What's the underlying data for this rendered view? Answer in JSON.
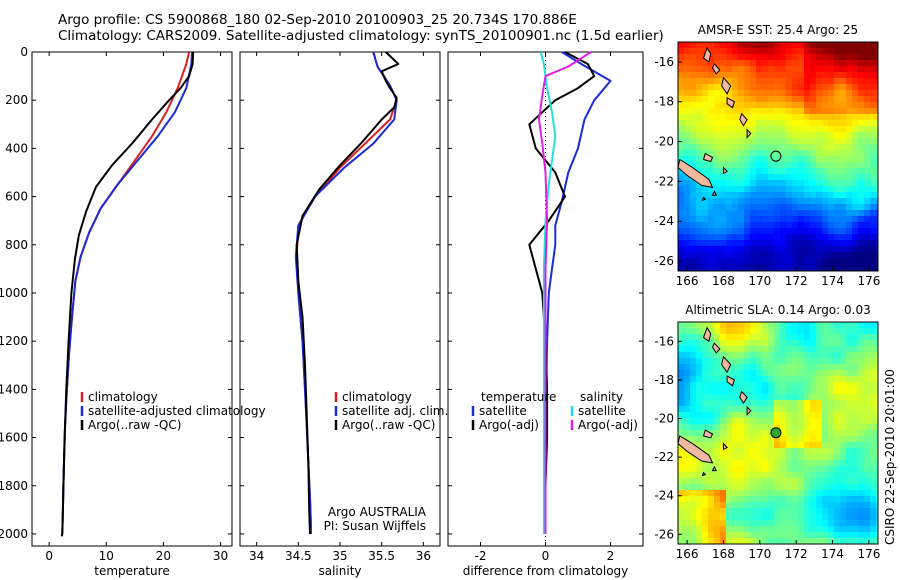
{
  "header": {
    "line1": "Argo profile: CS 5900868_180 02-Sep-2010 20100903_25 20.734S 170.886E",
    "line2": "Climatology: CARS2009. Satellite-adjusted climatology: synTS_20100901.nc (1.5d earlier)"
  },
  "side_label": "CSIRO 22-Sep-2010 20:01:00",
  "colors": {
    "red": "#e02020",
    "blue": "#1a2bd8",
    "black": "#000000",
    "cyan": "#22e0e0",
    "magenta": "#e020e0"
  },
  "chart_data": [
    {
      "type": "line",
      "title": "",
      "xlabel": "temperature",
      "ylabel": "",
      "xlim": [
        -3,
        32
      ],
      "ylim": [
        2050,
        0
      ],
      "xticks": [
        0,
        10,
        20,
        30
      ],
      "yticks": [
        0,
        200,
        400,
        600,
        800,
        1000,
        1200,
        1400,
        1600,
        1800,
        2000
      ],
      "legend": {
        "position": "lower-right",
        "entries": [
          "climatology",
          "satellite-adjusted climatology",
          "Argo(..raw -QC)"
        ]
      },
      "series": [
        {
          "name": "climatology",
          "color": "red",
          "x": [
            24.5,
            24.0,
            22.5,
            20.5,
            18.0,
            15.0,
            12.0,
            9.0,
            7.0,
            5.5,
            4.6,
            4.0,
            3.5,
            3.1,
            2.8,
            2.6,
            2.5,
            2.4,
            2.3
          ],
          "y": [
            0,
            50,
            150,
            250,
            350,
            450,
            550,
            650,
            750,
            850,
            950,
            1100,
            1250,
            1400,
            1550,
            1700,
            1800,
            1900,
            2000
          ]
        },
        {
          "name": "satellite-adjusted climatology",
          "color": "blue",
          "x": [
            25.0,
            24.9,
            24.0,
            22.0,
            19.0,
            15.5,
            12.0,
            9.0,
            7.0,
            5.5,
            4.6,
            4.0,
            3.5,
            3.1,
            2.8,
            2.6,
            2.5,
            2.4,
            2.3
          ],
          "y": [
            0,
            50,
            150,
            250,
            350,
            450,
            550,
            650,
            750,
            850,
            950,
            1100,
            1250,
            1400,
            1550,
            1700,
            1800,
            1900,
            2000
          ]
        },
        {
          "name": "Argo(..raw -QC)",
          "color": "black",
          "x": [
            25.2,
            25.1,
            24.5,
            23.0,
            21.0,
            18.0,
            14.5,
            11.0,
            8.2,
            6.5,
            5.2,
            4.5,
            3.9,
            3.4,
            3.0,
            2.7,
            2.5,
            2.4,
            2.3,
            2.2
          ],
          "y": [
            0,
            50,
            100,
            150,
            200,
            280,
            380,
            470,
            560,
            660,
            760,
            860,
            1000,
            1200,
            1400,
            1600,
            1800,
            1900,
            2000,
            2010
          ]
        }
      ]
    },
    {
      "type": "line",
      "title": "",
      "xlabel": "salinity",
      "ylabel": "",
      "xlim": [
        33.8,
        36.2
      ],
      "ylim": [
        2050,
        0
      ],
      "xticks": [
        34,
        34.5,
        35,
        35.5,
        36
      ],
      "yticks": [],
      "legend": {
        "position": "lower-right",
        "entries": [
          "climatology",
          "satellite adj. clim.",
          "Argo(..raw -QC)"
        ]
      },
      "annotations": [
        "Argo AUSTRALIA",
        "PI: Susan Wijffels"
      ],
      "series": [
        {
          "name": "climatology",
          "color": "red",
          "x": [
            35.4,
            35.45,
            35.6,
            35.68,
            35.6,
            35.3,
            35.0,
            34.7,
            34.5,
            34.48,
            34.5,
            34.55,
            34.58,
            34.6,
            34.62,
            34.64,
            34.65,
            34.65
          ],
          "y": [
            0,
            60,
            140,
            200,
            280,
            380,
            480,
            600,
            720,
            850,
            1000,
            1200,
            1400,
            1550,
            1700,
            1850,
            1950,
            2000
          ]
        },
        {
          "name": "satellite adj. clim.",
          "color": "blue",
          "x": [
            35.4,
            35.45,
            35.6,
            35.68,
            35.65,
            35.4,
            35.05,
            34.7,
            34.5,
            34.47,
            34.5,
            34.55,
            34.58,
            34.6,
            34.62,
            34.64,
            34.65,
            34.65
          ],
          "y": [
            0,
            60,
            140,
            200,
            280,
            380,
            480,
            600,
            720,
            850,
            1000,
            1200,
            1400,
            1550,
            1700,
            1850,
            1950,
            2000
          ]
        },
        {
          "name": "Argo(..raw -QC)",
          "color": "black",
          "x": [
            35.55,
            35.7,
            35.5,
            35.55,
            35.6,
            35.68,
            35.65,
            35.5,
            35.25,
            35.0,
            34.75,
            34.55,
            34.48,
            34.5,
            34.55,
            34.58,
            34.6,
            34.62,
            34.63,
            34.64
          ],
          "y": [
            0,
            50,
            80,
            120,
            150,
            190,
            230,
            280,
            380,
            470,
            570,
            680,
            800,
            950,
            1100,
            1300,
            1500,
            1700,
            1900,
            2000
          ]
        }
      ]
    },
    {
      "type": "line",
      "title": "",
      "xlabel": "difference from climatology",
      "ylabel": "",
      "xlim": [
        -3,
        3
      ],
      "ylim": [
        2050,
        0
      ],
      "xticks": [
        -2,
        0,
        2
      ],
      "yticks": [],
      "legend": {
        "position": "lower",
        "entries": [
          "temperature",
          "satellite",
          "Argo(-adj)",
          "salinity",
          "satellite",
          "Argo(-adj)"
        ]
      },
      "series": [
        {
          "name": "temperature satellite",
          "color": "blue",
          "x": [
            0.5,
            1.1,
            2.0,
            1.5,
            1.2,
            1.0,
            0.7,
            0.5,
            0.3,
            0.3,
            0.2,
            0.1,
            0.05,
            0.02,
            0.0,
            0.0,
            0.0
          ],
          "y": [
            0,
            50,
            120,
            200,
            280,
            400,
            500,
            620,
            720,
            800,
            900,
            1000,
            1200,
            1400,
            1600,
            1800,
            2000
          ]
        },
        {
          "name": "temperature Argo(-adj)",
          "color": "black",
          "x": [
            0.6,
            1.3,
            1.5,
            1.0,
            0.3,
            -0.5,
            -0.3,
            0.3,
            0.6,
            0.1,
            -0.5,
            -0.3,
            -0.1,
            0.0,
            0.05,
            0.05,
            0.0,
            0.0
          ],
          "y": [
            0,
            50,
            100,
            150,
            200,
            300,
            400,
            500,
            600,
            700,
            800,
            900,
            1000,
            1200,
            1400,
            1600,
            1800,
            2000
          ]
        },
        {
          "name": "salinity satellite",
          "color": "cyan",
          "x": [
            -0.15,
            -0.05,
            0.05,
            0.2,
            0.3,
            0.2,
            0.1,
            0.0,
            -0.05,
            -0.05,
            -0.05,
            -0.05,
            -0.05,
            -0.05
          ],
          "y": [
            0,
            50,
            150,
            250,
            350,
            450,
            550,
            700,
            900,
            1100,
            1300,
            1500,
            1800,
            2000
          ]
        },
        {
          "name": "salinity Argo(-adj)",
          "color": "magenta",
          "x": [
            1.4,
            0.7,
            0.0,
            -0.1,
            -0.2,
            -0.1,
            0.0,
            0.05,
            0.0,
            0.0,
            0.0,
            0.0
          ],
          "y": [
            0,
            60,
            100,
            180,
            280,
            380,
            500,
            700,
            900,
            1200,
            1600,
            2000
          ]
        }
      ]
    },
    {
      "type": "heatmap",
      "title": "AMSR-E SST: 25.4  Argo: 25",
      "xlabel": "",
      "ylabel": "",
      "xlim": [
        165.5,
        176.5
      ],
      "ylim": [
        -26.5,
        -15
      ],
      "xticks": [
        166,
        168,
        170,
        172,
        174,
        176
      ],
      "yticks": [
        -16,
        -18,
        -20,
        -22,
        -24,
        -26
      ],
      "marker": {
        "lon": 170.886,
        "lat": -20.734
      }
    },
    {
      "type": "heatmap",
      "title": "Altimetric SLA: 0.14  Argo: 0.03",
      "xlabel": "",
      "ylabel": "",
      "xlim": [
        165.5,
        176.5
      ],
      "ylim": [
        -26.5,
        -15
      ],
      "xticks": [
        166,
        168,
        170,
        172,
        174,
        176
      ],
      "yticks": [
        -16,
        -18,
        -20,
        -22,
        -24,
        -26
      ],
      "marker": {
        "lon": 170.886,
        "lat": -20.734
      }
    }
  ]
}
